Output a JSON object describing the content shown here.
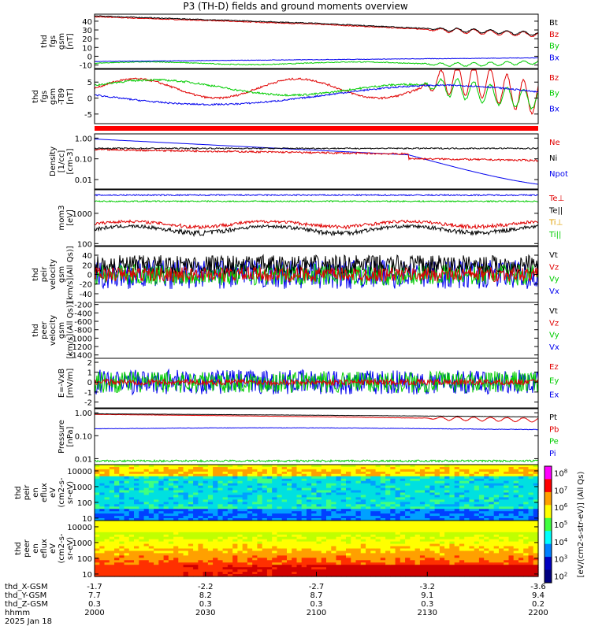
{
  "title": "P3 (TH-D) fields and ground moments overview",
  "colorbar": {
    "label": "[eV/(cm2-s-str-eV)] (All Qs)",
    "ticks": [
      "10^8",
      "10^7",
      "10^6",
      "10^5",
      "10^4",
      "10^3",
      "10^2"
    ],
    "tick_values": [
      8,
      7,
      6,
      5,
      4,
      3,
      2
    ]
  },
  "xaxis": {
    "ticks": [
      {
        "label": "2000",
        "time_min": 0
      },
      {
        "label": "2030",
        "time_min": 30
      },
      {
        "label": "2100",
        "time_min": 60
      },
      {
        "label": "2130",
        "time_min": 90
      },
      {
        "label": "2200",
        "time_min": 120
      }
    ],
    "ephemeris": [
      {
        "name": "thd_X-GSM",
        "values": [
          "-1.7",
          "-2.2",
          "-2.7",
          "-3.2",
          "-3.6"
        ]
      },
      {
        "name": "thd_Y-GSM",
        "values": [
          "7.7",
          "8.2",
          "8.7",
          "9.1",
          "9.4"
        ]
      },
      {
        "name": "thd_Z-GSM",
        "values": [
          "0.3",
          "0.3",
          "0.3",
          "0.3",
          "0.2"
        ]
      },
      {
        "name": "hhmm",
        "values": [
          "2000",
          "2030",
          "2100",
          "2130",
          "2200"
        ]
      }
    ],
    "date": "2025 Jan 18"
  },
  "chart_data": [
    {
      "type": "line",
      "ylabel_lines": [
        "thd",
        "fgs",
        "gsm",
        "[nT]"
      ],
      "yticks": [
        -10,
        0,
        10,
        20,
        30,
        40
      ],
      "ylim": [
        -14,
        48
      ],
      "legend": [
        {
          "name": "Bt",
          "color": "#000000"
        },
        {
          "name": "Bz",
          "color": "#e00000"
        },
        {
          "name": "By",
          "color": "#00cc00"
        },
        {
          "name": "Bx",
          "color": "#0000ee"
        }
      ]
    },
    {
      "type": "line",
      "ylabel_lines": [
        "thd",
        "fgs",
        "gsm",
        "-T89",
        "[nT]"
      ],
      "yticks": [
        -5,
        0,
        5
      ],
      "ylim": [
        -8,
        9
      ],
      "legend": [
        {
          "name": "Bz",
          "color": "#e00000"
        },
        {
          "name": "By",
          "color": "#00cc00"
        },
        {
          "name": "Bx",
          "color": "#0000ee"
        }
      ]
    },
    {
      "type": "line",
      "ylabel_lines": [
        "Density",
        "[1/cc]",
        "[cm-3]"
      ],
      "yticks": [
        "0.01",
        "0.10",
        "1.00"
      ],
      "ytick_values": [
        0.01,
        0.1,
        1.0
      ],
      "ylim": [
        0.0035,
        1.6
      ],
      "yscale": "log",
      "legend": [
        {
          "name": "Ne",
          "color": "#e00000"
        },
        {
          "name": "Ni",
          "color": "#000000"
        },
        {
          "name": "Npot",
          "color": "#0000ee"
        }
      ]
    },
    {
      "type": "line",
      "ylabel_lines": [
        "mom3",
        "[eV]"
      ],
      "yticks": [
        "100",
        "1000"
      ],
      "ytick_values": [
        100,
        1000
      ],
      "ylim": [
        85,
        6000
      ],
      "yscale": "log",
      "legend": [
        {
          "name": "Te⊥",
          "color": "#e00000"
        },
        {
          "name": "Te||",
          "color": "#000000"
        },
        {
          "name": "Ti⊥",
          "color": "#e0a000"
        },
        {
          "name": "Ti||",
          "color": "#00cc00"
        }
      ]
    },
    {
      "type": "line",
      "ylabel_lines": [
        "thd",
        "peir",
        "velocity",
        "gsm",
        "[km/s](All Qs)]"
      ],
      "yticks": [
        -40,
        -20,
        0,
        20,
        40
      ],
      "ylim": [
        -58,
        58
      ],
      "legend": [
        {
          "name": "Vt",
          "color": "#000000"
        },
        {
          "name": "Vz",
          "color": "#e00000"
        },
        {
          "name": "Vy",
          "color": "#00cc00"
        },
        {
          "name": "Vx",
          "color": "#0000ee"
        }
      ]
    },
    {
      "type": "line",
      "ylabel_lines": [
        "thd",
        "peer",
        "velocity",
        "gsm",
        "[km/s](All Qs)]"
      ],
      "yticks": [
        -1400,
        -1200,
        -1000,
        -800,
        -600,
        -400,
        -200
      ],
      "ylim": [
        -1480,
        -150
      ],
      "legend": [
        {
          "name": "Vt",
          "color": "#000000"
        },
        {
          "name": "Vz",
          "color": "#e00000"
        },
        {
          "name": "Vy",
          "color": "#00cc00"
        },
        {
          "name": "Vx",
          "color": "#0000ee"
        }
      ]
    },
    {
      "type": "line",
      "ylabel_lines": [
        "E=-VxB",
        "[mV/m]"
      ],
      "yticks": [
        -2,
        -1,
        0,
        1,
        2
      ],
      "ylim": [
        -2.6,
        2.4
      ],
      "legend": [
        {
          "name": "Ez",
          "color": "#e00000"
        },
        {
          "name": "Ey",
          "color": "#00cc00"
        },
        {
          "name": "Ex",
          "color": "#0000ee"
        }
      ]
    },
    {
      "type": "line",
      "ylabel_lines": [
        "Pressure",
        "[nPa]"
      ],
      "yticks": [
        "0.01",
        "0.10",
        "1.00"
      ],
      "ytick_values": [
        0.01,
        0.1,
        1.0
      ],
      "ylim": [
        0.0055,
        1.5
      ],
      "yscale": "log",
      "legend": [
        {
          "name": "Pt",
          "color": "#000000"
        },
        {
          "name": "Pb",
          "color": "#e00000"
        },
        {
          "name": "Pe",
          "color": "#00cc00"
        },
        {
          "name": "Pi",
          "color": "#0000ee"
        }
      ]
    },
    {
      "type": "heatmap",
      "ylabel_lines": [
        "thd",
        "peir",
        "en",
        "eflux",
        "eV",
        "(cm2-s-",
        "sr-eV)"
      ],
      "yticks": [
        "10",
        "100",
        "1000",
        "10000"
      ],
      "ytick_values": [
        10,
        100,
        1000,
        10000
      ],
      "ylim": [
        7,
        25000
      ],
      "yscale": "log"
    },
    {
      "type": "heatmap",
      "ylabel_lines": [
        "thd",
        "peer",
        "en",
        "eflux",
        "eV",
        "(cm2-s-",
        "sr-eV)"
      ],
      "yticks": [
        "10",
        "100",
        "1000",
        "10000"
      ],
      "ytick_values": [
        10,
        100,
        1000,
        10000
      ],
      "ylim": [
        7,
        25000
      ],
      "yscale": "log"
    }
  ]
}
